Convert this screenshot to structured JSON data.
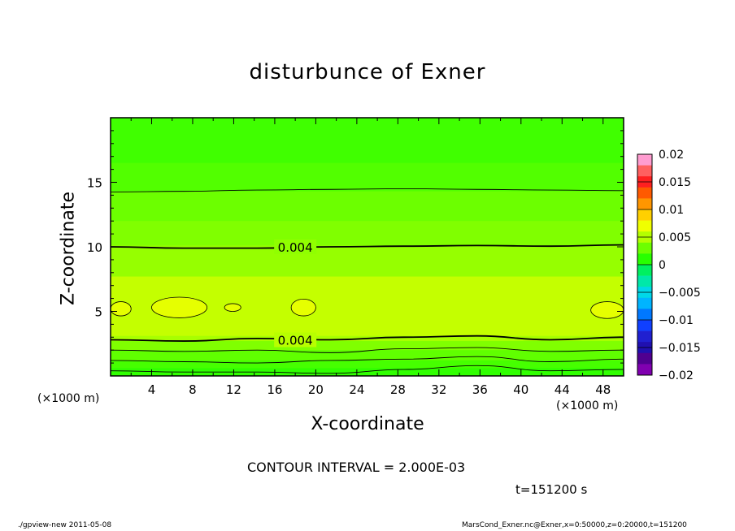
{
  "chart_data": {
    "type": "heatmap",
    "title": "disturbunce of Exner",
    "xlabel": "X-coordinate",
    "ylabel": "Z-coordinate",
    "x_unit": "(×1000 m)",
    "y_unit": "(×1000 m)",
    "xlim": [
      0,
      50
    ],
    "ylim": [
      0,
      20
    ],
    "x_ticks": [
      4,
      8,
      12,
      16,
      20,
      24,
      28,
      32,
      36,
      40,
      44,
      48
    ],
    "y_ticks": [
      5,
      10,
      15
    ],
    "colorbar": {
      "range": [
        -0.02,
        0.02
      ],
      "tick_labels": [
        "0.02",
        "0.015",
        "0.01",
        "0.005",
        "0",
        "−0.005",
        "−0.01",
        "−0.015",
        "−0.02"
      ],
      "colors": [
        "#ff9cd0",
        "#ff6060",
        "#ff2020",
        "#ff5a00",
        "#ff9600",
        "#ffd000",
        "#f0ff00",
        "#b4ff00",
        "#6cff00",
        "#28ff00",
        "#00f060",
        "#00e8a8",
        "#00d8e8",
        "#00b4ff",
        "#0078ff",
        "#1040ff",
        "#2020d0",
        "#2010b0",
        "#500090",
        "#8000b0"
      ]
    },
    "bands": [
      {
        "z_from": 19.9,
        "z_to": 20.0,
        "color": "#3dff00"
      },
      {
        "z_from": 16.5,
        "z_to": 19.9,
        "color": "#40ff00"
      },
      {
        "z_from": 14.3,
        "z_to": 16.5,
        "color": "#52ff00"
      },
      {
        "z_from": 12.0,
        "z_to": 14.3,
        "color": "#6cff00"
      },
      {
        "z_from": 10.1,
        "z_to": 12.0,
        "color": "#80ff00"
      },
      {
        "z_from": 7.7,
        "z_to": 10.1,
        "color": "#96ff00"
      },
      {
        "z_from": 3.1,
        "z_to": 7.7,
        "color": "#c4ff00"
      },
      {
        "z_from": 2.7,
        "z_to": 3.1,
        "color": "#a8ff00"
      },
      {
        "z_from": 2.0,
        "z_to": 2.7,
        "color": "#80ff00"
      },
      {
        "z_from": 1.2,
        "z_to": 2.0,
        "color": "#60ff00"
      },
      {
        "z_from": 0.6,
        "z_to": 1.2,
        "color": "#46ff00"
      },
      {
        "z_from": 0.0,
        "z_to": 0.6,
        "color": "#30ff00"
      }
    ],
    "contours": [
      {
        "level": "",
        "bold": false,
        "z": [
          14.25,
          14.3,
          14.4,
          14.45,
          14.5,
          14.45,
          14.4,
          14.35
        ]
      },
      {
        "level": "0.004",
        "bold": true,
        "z": [
          10.0,
          9.9,
          9.9,
          10.0,
          10.05,
          10.1,
          10.05,
          10.15
        ]
      },
      {
        "level": "0.004",
        "bold": true,
        "z": [
          2.8,
          2.7,
          2.9,
          2.8,
          3.0,
          3.1,
          2.8,
          3.0
        ]
      },
      {
        "level": "",
        "bold": false,
        "z": [
          2.0,
          1.9,
          2.0,
          1.8,
          2.1,
          2.2,
          1.9,
          2.0
        ]
      },
      {
        "level": "",
        "bold": false,
        "z": [
          1.2,
          1.1,
          1.0,
          1.2,
          1.3,
          1.5,
          1.1,
          1.3
        ]
      },
      {
        "level": "",
        "bold": false,
        "z": [
          0.4,
          0.3,
          0.3,
          0.2,
          0.5,
          0.8,
          0.4,
          0.5
        ]
      }
    ],
    "highs": [
      {
        "x": 1.0,
        "z": 5.2,
        "rx": 1.0,
        "rz": 0.55
      },
      {
        "x": 6.7,
        "z": 5.3,
        "rx": 2.7,
        "rz": 0.8
      },
      {
        "x": 11.9,
        "z": 5.3,
        "rx": 0.8,
        "rz": 0.3
      },
      {
        "x": 18.8,
        "z": 5.3,
        "rx": 1.2,
        "rz": 0.65
      },
      {
        "x": 48.4,
        "z": 5.1,
        "rx": 1.6,
        "rz": 0.65
      }
    ],
    "contour_interval": "CONTOUR INTERVAL = 2.000E-03",
    "time": "t=151200 s"
  },
  "footer": {
    "left": "./gpview-new  2011-05-08",
    "right": "MarsCond_Exner.nc@Exner,x=0:50000,z=0:20000,t=151200"
  }
}
